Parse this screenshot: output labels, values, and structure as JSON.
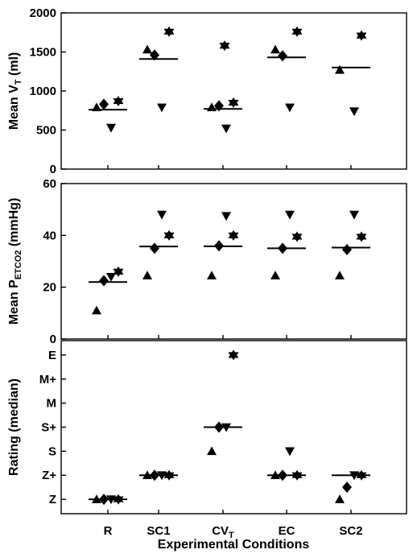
{
  "chart_data": {
    "type": "scatter",
    "categories": [
      "R",
      "SC1",
      "CV_T",
      "EC",
      "SC2"
    ],
    "category_labels": [
      {
        "main": "R",
        "sub": ""
      },
      {
        "main": "SC1",
        "sub": ""
      },
      {
        "main": "CV",
        "sub": "T"
      },
      {
        "main": "EC",
        "sub": ""
      },
      {
        "main": "SC2",
        "sub": ""
      }
    ],
    "xlabel": "Experimental Conditions",
    "marker_order": [
      "triangle-up",
      "diamond",
      "triangle-down",
      "star"
    ],
    "panels": [
      {
        "id": "vt",
        "ylabel": {
          "main": "Mean V",
          "sub": "T",
          "unit": " (ml)"
        },
        "ylim": [
          0,
          2000
        ],
        "yticks": [
          0,
          500,
          1000,
          1500,
          2000
        ],
        "ytick_labels": [
          "0",
          "500",
          "1000",
          "1500",
          "2000"
        ],
        "medians": [
          760,
          1410,
          770,
          1430,
          1300
        ],
        "points": [
          [
            790,
            830,
            530,
            870
          ],
          [
            1530,
            1460,
            790,
            1760
          ],
          [
            790,
            810,
            520,
            850
          ],
          [
            1530,
            1450,
            790,
            1760
          ],
          [
            1270,
            null,
            740,
            1710
          ]
        ],
        "extra_points": [
          {
            "category": 2,
            "marker": "star",
            "value": 1580
          }
        ]
      },
      {
        "id": "petco2",
        "ylabel": {
          "main": "Mean P",
          "sub": "ETCO2",
          "unit": " (mmHg)"
        },
        "ylim": [
          0,
          60
        ],
        "yticks": [
          0,
          20,
          40,
          60
        ],
        "ytick_labels": [
          "0",
          "20",
          "40",
          "60"
        ],
        "medians": [
          22,
          35.7,
          35.8,
          35,
          35.3
        ],
        "points": [
          [
            11,
            22.5,
            24,
            26
          ],
          [
            24.5,
            35,
            48,
            40
          ],
          [
            24.5,
            36,
            47.5,
            40
          ],
          [
            24.5,
            35,
            48,
            39.5
          ],
          [
            24.5,
            34.5,
            48,
            39.5
          ]
        ]
      },
      {
        "id": "rating",
        "ylabel": {
          "main": "Rating (median)",
          "sub": "",
          "unit": ""
        },
        "ylim": [
          -0.6,
          6.6
        ],
        "yticks": [
          0,
          1,
          2,
          3,
          4,
          5,
          6
        ],
        "ytick_labels": [
          "Z",
          "Z+",
          "S",
          "S+",
          "M",
          "M+",
          "E"
        ],
        "medians": [
          0,
          1,
          3,
          1,
          1
        ],
        "points": [
          [
            0,
            0,
            0,
            0
          ],
          [
            1,
            1,
            1,
            1
          ],
          [
            2,
            3,
            3,
            6
          ],
          [
            1,
            1,
            2,
            1
          ],
          [
            0,
            0.5,
            1,
            1
          ]
        ]
      }
    ]
  }
}
